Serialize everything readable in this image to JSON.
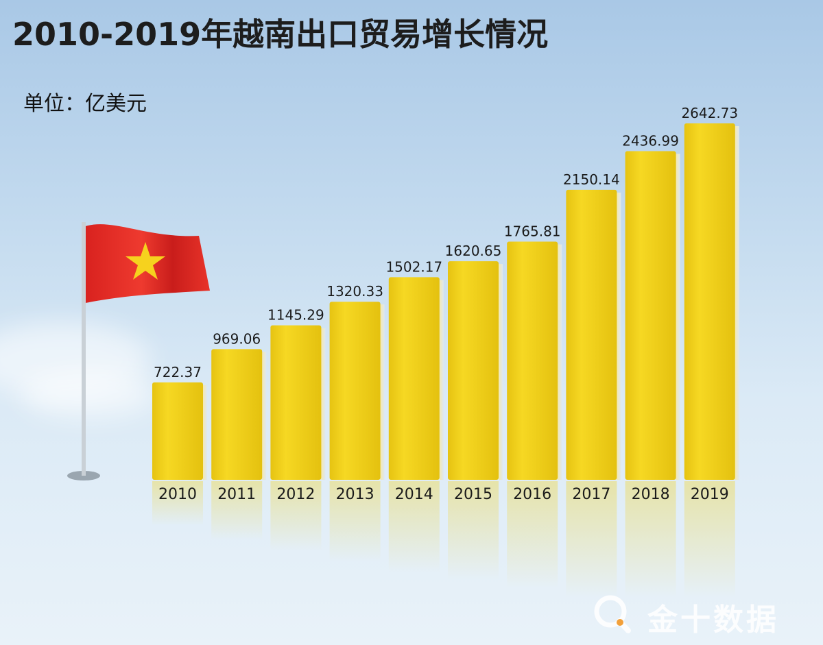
{
  "header": {
    "title": "2010-2019年越南出口贸易增长情况",
    "unit": "单位：亿美元"
  },
  "chart_data": {
    "type": "bar",
    "title": "2010-2019年越南出口贸易增长情况",
    "ylabel": "单位：亿美元",
    "xlabel": "",
    "categories": [
      "2010",
      "2011",
      "2012",
      "2013",
      "2014",
      "2015",
      "2016",
      "2017",
      "2018",
      "2019"
    ],
    "values": [
      722.37,
      969.06,
      1145.29,
      1320.33,
      1502.17,
      1620.65,
      1765.81,
      2150.14,
      2436.99,
      2642.73
    ],
    "value_labels": [
      "722.37",
      "969.06",
      "1145.29",
      "1320.33",
      "1502.17",
      "1620.65",
      "1765.81",
      "2150.14",
      "2436.99",
      "2642.73"
    ],
    "ylim": [
      0,
      2642.73
    ],
    "grid": false,
    "bar_color": "#f0cf1a"
  },
  "decor": {
    "flag_color": "#e12a26",
    "star_color": "#f6d21e"
  },
  "watermark": {
    "text": "金十数据",
    "icon": "q-search-logo-icon"
  }
}
